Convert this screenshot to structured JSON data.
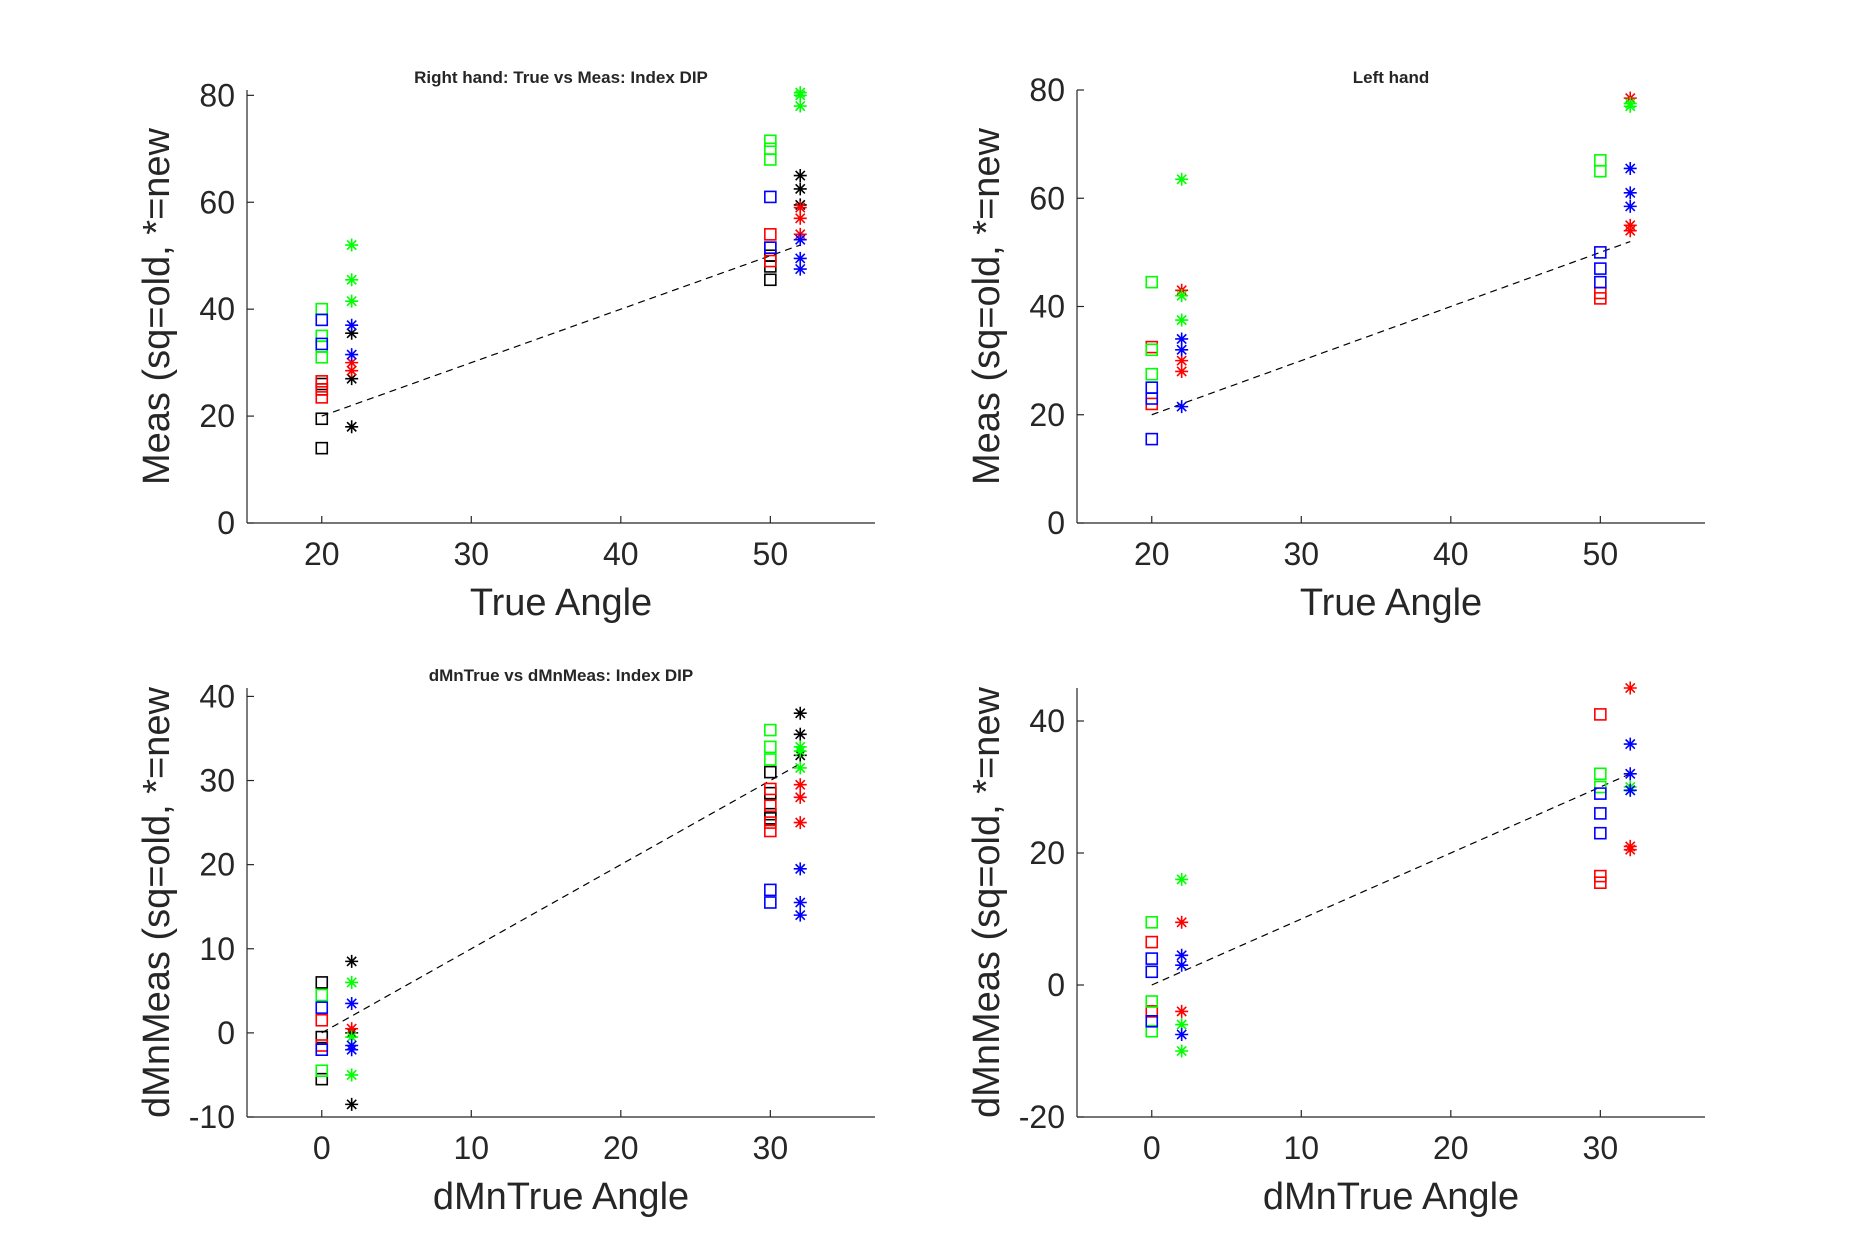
{
  "colors": {
    "black": "#000000",
    "red": "#ff0000",
    "green": "#00ff00",
    "blue": "#0000ff"
  },
  "chart_data": [
    {
      "type": "scatter",
      "title": "Right hand: True vs Meas: Index DIP",
      "xlabel": "True Angle",
      "ylabel": "Meas (sq=old, *=new",
      "xlim": [
        15,
        57
      ],
      "ylim": [
        0,
        81
      ],
      "xticks": [
        20,
        30,
        40,
        50
      ],
      "yticks": [
        0,
        20,
        40,
        60,
        80
      ],
      "grid": false,
      "reference_line": {
        "style": "dashed",
        "color": "black",
        "x": [
          20,
          52
        ],
        "y": [
          20,
          52
        ]
      },
      "series": [
        {
          "marker": "square",
          "color": "black",
          "points": [
            [
              20,
              14
            ],
            [
              20,
              19.5
            ],
            [
              20,
              25
            ],
            [
              20,
              26
            ],
            [
              50,
              45.5
            ],
            [
              50,
              48
            ],
            [
              50,
              50
            ]
          ]
        },
        {
          "marker": "square",
          "color": "red",
          "points": [
            [
              20,
              23.5
            ],
            [
              20,
              25
            ],
            [
              20,
              26.5
            ],
            [
              50,
              49
            ],
            [
              50,
              51.5
            ],
            [
              50,
              54
            ]
          ]
        },
        {
          "marker": "square",
          "color": "green",
          "points": [
            [
              20,
              31
            ],
            [
              20,
              33
            ],
            [
              20,
              35
            ],
            [
              20,
              40
            ],
            [
              50,
              68
            ],
            [
              50,
              70
            ],
            [
              50,
              71.5
            ]
          ]
        },
        {
          "marker": "square",
          "color": "blue",
          "points": [
            [
              20,
              33.5
            ],
            [
              20,
              38
            ],
            [
              50,
              51.5
            ],
            [
              50,
              61
            ]
          ]
        },
        {
          "marker": "asterisk",
          "color": "black",
          "points": [
            [
              22,
              18
            ],
            [
              22,
              27
            ],
            [
              22,
              35.5
            ],
            [
              52,
              59.5
            ],
            [
              52,
              62.5
            ],
            [
              52,
              65
            ]
          ]
        },
        {
          "marker": "asterisk",
          "color": "red",
          "points": [
            [
              22,
              28.5
            ],
            [
              22,
              30
            ],
            [
              52,
              54
            ],
            [
              52,
              57
            ],
            [
              52,
              59
            ]
          ]
        },
        {
          "marker": "asterisk",
          "color": "green",
          "points": [
            [
              22,
              41.5
            ],
            [
              22,
              45.5
            ],
            [
              22,
              52
            ],
            [
              52,
              78
            ],
            [
              52,
              80
            ],
            [
              52,
              80.5
            ]
          ]
        },
        {
          "marker": "asterisk",
          "color": "blue",
          "points": [
            [
              22,
              31.5
            ],
            [
              22,
              37
            ],
            [
              52,
              47.5
            ],
            [
              52,
              49.5
            ],
            [
              52,
              53
            ]
          ]
        }
      ]
    },
    {
      "type": "scatter",
      "title": "Left hand",
      "xlabel": "True Angle",
      "ylabel": "Meas (sq=old, *=new",
      "xlim": [
        15,
        57
      ],
      "ylim": [
        0,
        80
      ],
      "xticks": [
        20,
        30,
        40,
        50
      ],
      "yticks": [
        0,
        20,
        40,
        60,
        80
      ],
      "grid": false,
      "reference_line": {
        "style": "dashed",
        "color": "black",
        "x": [
          20,
          52
        ],
        "y": [
          20,
          52
        ]
      },
      "series": [
        {
          "marker": "square",
          "color": "red",
          "points": [
            [
              20,
              22
            ],
            [
              20,
              32.5
            ],
            [
              50,
              41.5
            ],
            [
              50,
              42.5
            ]
          ]
        },
        {
          "marker": "square",
          "color": "green",
          "points": [
            [
              20,
              27.5
            ],
            [
              20,
              32
            ],
            [
              20,
              44.5
            ],
            [
              50,
              65
            ],
            [
              50,
              67
            ]
          ]
        },
        {
          "marker": "square",
          "color": "blue",
          "points": [
            [
              20,
              15.5
            ],
            [
              20,
              23
            ],
            [
              20,
              25
            ],
            [
              50,
              44.5
            ],
            [
              50,
              47
            ],
            [
              50,
              50
            ]
          ]
        },
        {
          "marker": "asterisk",
          "color": "red",
          "points": [
            [
              22,
              28
            ],
            [
              22,
              30
            ],
            [
              22,
              43
            ],
            [
              52,
              54
            ],
            [
              52,
              55
            ],
            [
              52,
              78.5
            ]
          ]
        },
        {
          "marker": "asterisk",
          "color": "green",
          "points": [
            [
              22,
              37.5
            ],
            [
              22,
              42
            ],
            [
              22,
              63.5
            ],
            [
              52,
              77
            ],
            [
              52,
              77.5
            ]
          ]
        },
        {
          "marker": "asterisk",
          "color": "blue",
          "points": [
            [
              22,
              21.5
            ],
            [
              22,
              32
            ],
            [
              22,
              34
            ],
            [
              52,
              58.5
            ],
            [
              52,
              61
            ],
            [
              52,
              65.5
            ]
          ]
        }
      ]
    },
    {
      "type": "scatter",
      "title": "dMnTrue vs dMnMeas: Index DIP",
      "xlabel": "dMnTrue Angle",
      "ylabel": "dMnMeas (sq=old, *=new",
      "xlim": [
        -5,
        37
      ],
      "ylim": [
        -10,
        41
      ],
      "xticks": [
        0,
        10,
        20,
        30
      ],
      "yticks": [
        -10,
        0,
        10,
        20,
        30,
        40
      ],
      "grid": false,
      "reference_line": {
        "style": "dashed",
        "color": "black",
        "x": [
          0,
          32
        ],
        "y": [
          0,
          32
        ]
      },
      "series": [
        {
          "marker": "square",
          "color": "black",
          "points": [
            [
              0,
              -5.5
            ],
            [
              0,
              -0.5
            ],
            [
              0,
              6
            ],
            [
              30,
              25.5
            ],
            [
              30,
              26
            ],
            [
              30,
              28.5
            ],
            [
              30,
              31
            ]
          ]
        },
        {
          "marker": "square",
          "color": "red",
          "points": [
            [
              0,
              1.5
            ],
            [
              0,
              -1.5
            ],
            [
              30,
              24
            ],
            [
              30,
              25
            ],
            [
              30,
              27
            ],
            [
              30,
              29
            ]
          ]
        },
        {
          "marker": "square",
          "color": "green",
          "points": [
            [
              0,
              -4.5
            ],
            [
              0,
              4.5
            ],
            [
              30,
              32.5
            ],
            [
              30,
              34
            ],
            [
              30,
              36
            ]
          ]
        },
        {
          "marker": "square",
          "color": "blue",
          "points": [
            [
              0,
              -2
            ],
            [
              0,
              3
            ],
            [
              30,
              15.5
            ],
            [
              30,
              17
            ]
          ]
        },
        {
          "marker": "asterisk",
          "color": "black",
          "points": [
            [
              2,
              -8.5
            ],
            [
              2,
              0
            ],
            [
              2,
              8.5
            ],
            [
              32,
              33
            ],
            [
              32,
              35.5
            ],
            [
              32,
              38
            ]
          ]
        },
        {
          "marker": "asterisk",
          "color": "red",
          "points": [
            [
              2,
              0.5
            ],
            [
              32,
              25
            ],
            [
              32,
              28
            ],
            [
              32,
              29.5
            ]
          ]
        },
        {
          "marker": "asterisk",
          "color": "green",
          "points": [
            [
              2,
              -5
            ],
            [
              2,
              -0.5
            ],
            [
              2,
              6
            ],
            [
              32,
              31.5
            ],
            [
              32,
              33.5
            ],
            [
              32,
              34
            ]
          ]
        },
        {
          "marker": "asterisk",
          "color": "blue",
          "points": [
            [
              2,
              -2
            ],
            [
              2,
              -1.5
            ],
            [
              2,
              3.5
            ],
            [
              32,
              14
            ],
            [
              32,
              15.5
            ],
            [
              32,
              19.5
            ]
          ]
        }
      ]
    },
    {
      "type": "scatter",
      "title": "",
      "xlabel": "dMnTrue Angle",
      "ylabel": "dMnMeas (sq=old, *=new",
      "xlim": [
        -5,
        37
      ],
      "ylim": [
        -20,
        45
      ],
      "xticks": [
        0,
        10,
        20,
        30
      ],
      "yticks": [
        -20,
        0,
        20,
        40
      ],
      "grid": false,
      "reference_line": {
        "style": "dashed",
        "color": "black",
        "x": [
          0,
          32
        ],
        "y": [
          0,
          32
        ]
      },
      "series": [
        {
          "marker": "square",
          "color": "red",
          "points": [
            [
              0,
              -4
            ],
            [
              0,
              6.5
            ],
            [
              30,
              15.5
            ],
            [
              30,
              16.5
            ],
            [
              30,
              41
            ]
          ]
        },
        {
          "marker": "square",
          "color": "green",
          "points": [
            [
              0,
              -7
            ],
            [
              0,
              -2.5
            ],
            [
              0,
              9.5
            ],
            [
              30,
              30
            ],
            [
              30,
              32
            ]
          ]
        },
        {
          "marker": "square",
          "color": "blue",
          "points": [
            [
              0,
              -5.5
            ],
            [
              0,
              2
            ],
            [
              0,
              4
            ],
            [
              30,
              23
            ],
            [
              30,
              26
            ],
            [
              30,
              29
            ]
          ]
        },
        {
          "marker": "asterisk",
          "color": "red",
          "points": [
            [
              2,
              -4
            ],
            [
              2,
              9.5
            ],
            [
              32,
              20.5
            ],
            [
              32,
              21
            ],
            [
              32,
              45
            ]
          ]
        },
        {
          "marker": "asterisk",
          "color": "green",
          "points": [
            [
              2,
              -10
            ],
            [
              2,
              -6
            ],
            [
              2,
              16
            ],
            [
              32,
              29.5
            ],
            [
              32,
              30
            ]
          ]
        },
        {
          "marker": "asterisk",
          "color": "blue",
          "points": [
            [
              2,
              -7.5
            ],
            [
              2,
              3
            ],
            [
              2,
              4.5
            ],
            [
              32,
              29.5
            ],
            [
              32,
              32
            ],
            [
              32,
              36.5
            ]
          ]
        }
      ]
    }
  ]
}
